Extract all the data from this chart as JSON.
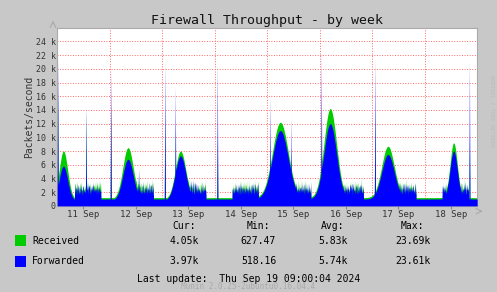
{
  "title": "Firewall Throughput - by week",
  "ylabel": "Packets/second",
  "fig_bg_color": "#C8C8C8",
  "plot_bg_color": "#FFFFFF",
  "grid_color": "#FF6666",
  "ylim": [
    0,
    26000
  ],
  "yticks": [
    0,
    2000,
    4000,
    6000,
    8000,
    10000,
    12000,
    14000,
    16000,
    18000,
    20000,
    22000,
    24000
  ],
  "ytick_labels": [
    "0",
    "2 k",
    "4 k",
    "6 k",
    "8 k",
    "10 k",
    "12 k",
    "14 k",
    "16 k",
    "18 k",
    "20 k",
    "22 k",
    "24 k"
  ],
  "x_labels": [
    "11 Sep",
    "12 Sep",
    "13 Sep",
    "14 Sep",
    "15 Sep",
    "16 Sep",
    "17 Sep",
    "18 Sep"
  ],
  "n_days": 8,
  "vline_positions": [
    1,
    2,
    3,
    4,
    5,
    6,
    7
  ],
  "received_color": "#00CC00",
  "forwarded_color": "#0000FF",
  "legend_labels": [
    "Received",
    "Forwarded"
  ],
  "stats_headers": [
    "Cur:",
    "Min:",
    "Avg:",
    "Max:"
  ],
  "stats_received": [
    "4.05k",
    "627.47",
    "5.83k",
    "23.69k"
  ],
  "stats_forwarded": [
    "3.97k",
    "518.16",
    "5.74k",
    "23.61k"
  ],
  "last_update": "Last update:  Thu Sep 19 09:00:04 2024",
  "munin_text": "Munin 2.0.25-2ubuntu0.16.04.4",
  "rrdtool_text": "RRDTOOL / TOBI OETIKER"
}
